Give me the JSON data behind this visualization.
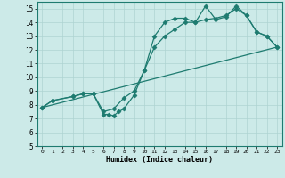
{
  "title": "",
  "xlabel": "Humidex (Indice chaleur)",
  "bg_color": "#cceae8",
  "grid_color": "#aed4d2",
  "line_color": "#1e7b70",
  "xlim": [
    -0.5,
    23.5
  ],
  "ylim": [
    5,
    15.5
  ],
  "xticks": [
    0,
    1,
    2,
    3,
    4,
    5,
    6,
    7,
    8,
    9,
    10,
    11,
    12,
    13,
    14,
    15,
    16,
    17,
    18,
    19,
    20,
    21,
    22,
    23
  ],
  "yticks": [
    5,
    6,
    7,
    8,
    9,
    10,
    11,
    12,
    13,
    14,
    15
  ],
  "line1_x": [
    0,
    1,
    3,
    4,
    5,
    6,
    6.5,
    7,
    7.5,
    8,
    9,
    10,
    11,
    12,
    13,
    14,
    15,
    16,
    17,
    18,
    19,
    20,
    21,
    22,
    23
  ],
  "line1_y": [
    7.8,
    8.3,
    8.6,
    8.8,
    8.8,
    7.3,
    7.3,
    7.2,
    7.5,
    7.7,
    8.7,
    10.5,
    13.0,
    14.0,
    14.3,
    14.3,
    14.0,
    15.2,
    14.2,
    14.4,
    15.2,
    14.5,
    13.3,
    13.0,
    12.2
  ],
  "line2_x": [
    0,
    1,
    3,
    4,
    5,
    6,
    7,
    8,
    9,
    10,
    11,
    12,
    13,
    14,
    15,
    16,
    17,
    18,
    19,
    20,
    21,
    22,
    23
  ],
  "line2_y": [
    7.8,
    8.3,
    8.6,
    8.8,
    8.8,
    7.5,
    7.7,
    8.5,
    9.0,
    10.5,
    12.2,
    13.0,
    13.5,
    14.0,
    14.0,
    14.2,
    14.3,
    14.5,
    15.0,
    14.5,
    13.3,
    13.0,
    12.2
  ],
  "line3_x": [
    0,
    23
  ],
  "line3_y": [
    7.8,
    12.2
  ],
  "marker": "D",
  "marker_size": 2.5,
  "line_width": 0.9
}
